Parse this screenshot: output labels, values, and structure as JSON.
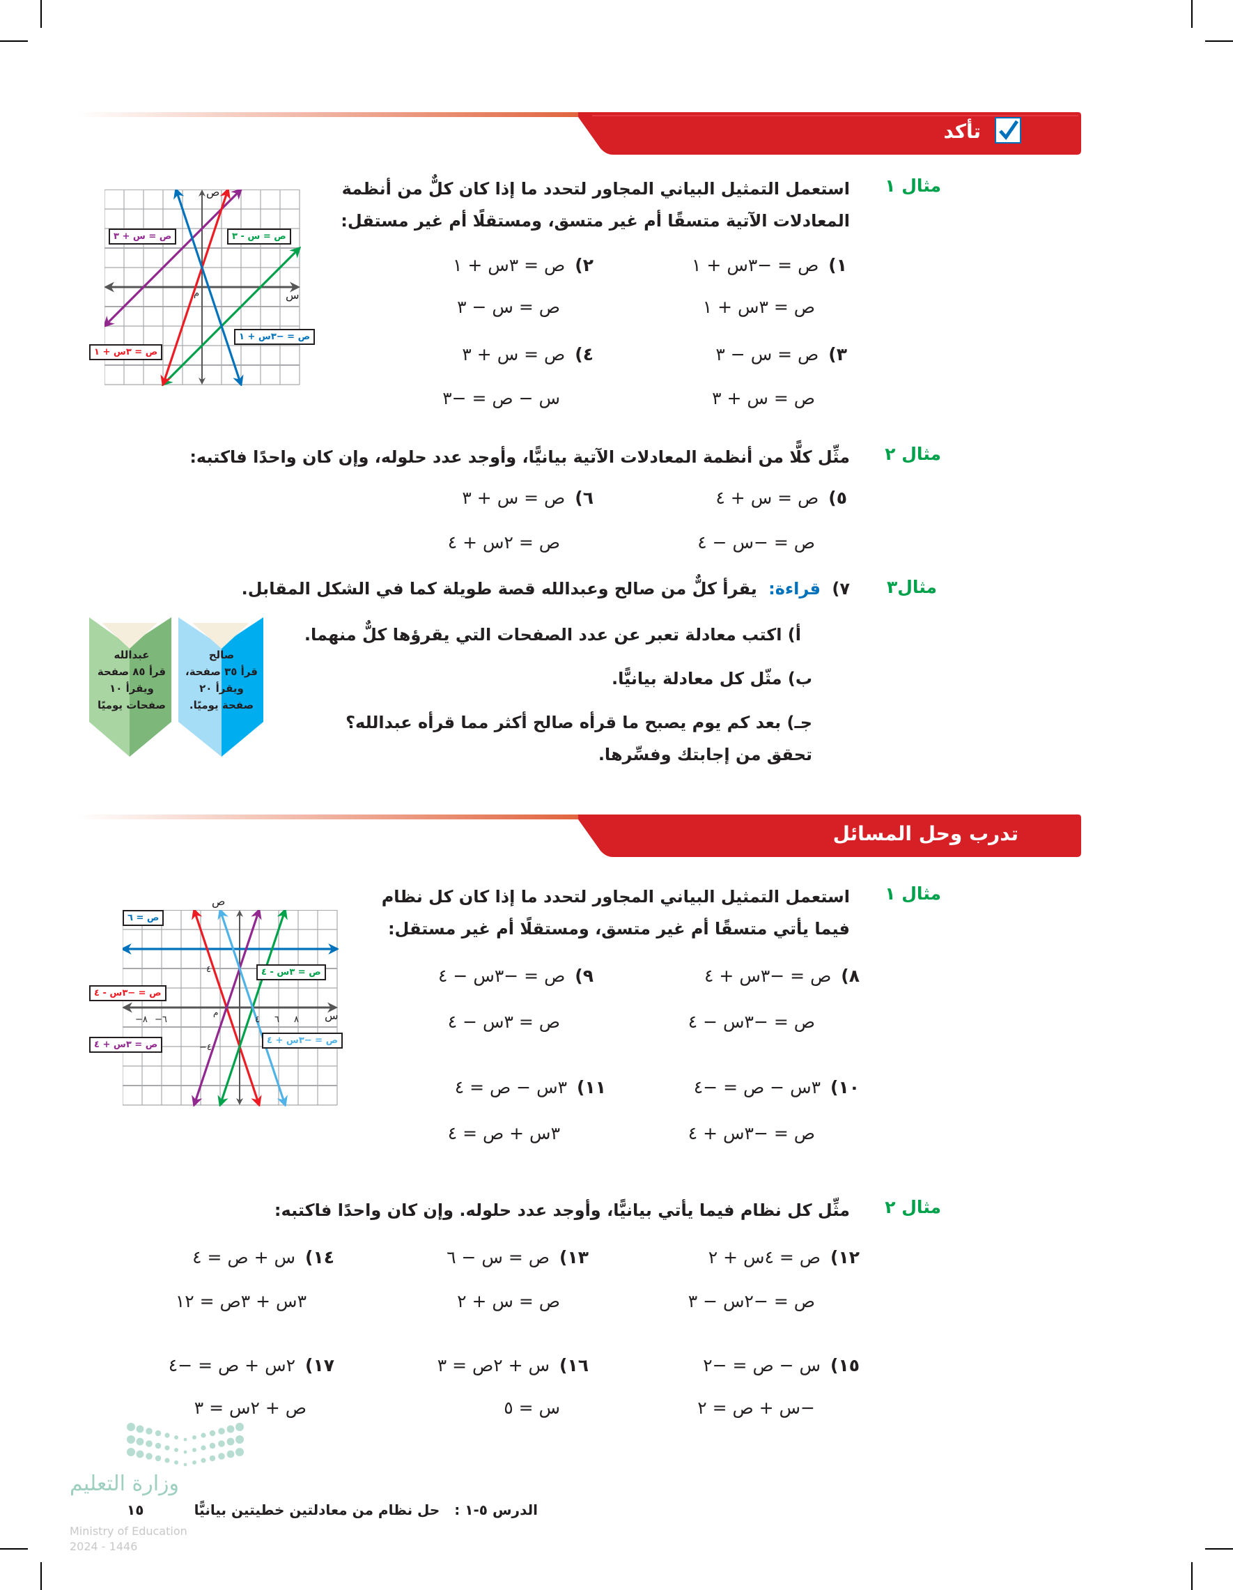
{
  "section_check": {
    "title": "تأكد",
    "icon": "checkbox-check-icon"
  },
  "section_practice": {
    "title": "تدرب وحل المسائل"
  },
  "colors": {
    "header_red": "#d71f26",
    "example_green": "#00a14b",
    "reading_blue": "#0072bc",
    "book_blue": "#00aeef",
    "book_green": "#7db87a"
  },
  "check": {
    "ex1": {
      "label": "مثال ١",
      "prompt": "استعمل التمثيل البياني المجاور لتحدد ما إذا كان كلٌّ من أنظمة المعادلات الآتية متسقًا أم غير متسق، ومستقلًا أم غير مستقل:",
      "problems": [
        {
          "num": "١)",
          "eq1": "ص = −٣س + ١",
          "eq2": "ص = ٣س + ١"
        },
        {
          "num": "٢)",
          "eq1": "ص = ٣س + ١",
          "eq2": "ص = س − ٣"
        },
        {
          "num": "٣)",
          "eq1": "ص = س − ٣",
          "eq2": "ص = س + ٣"
        },
        {
          "num": "٤)",
          "eq1": "ص = س + ٣",
          "eq2": "س − ص = −٣"
        }
      ],
      "graph": {
        "x_axis": "س",
        "y_axis": "ص",
        "origin": "م",
        "labels": {
          "purple": "ص = س + ٣",
          "green": "ص = س - ٣",
          "red": "ص = ٣س + ١",
          "blue": "ص = −٣س + ١"
        }
      }
    },
    "ex2": {
      "label": "مثال ٢",
      "prompt": "مثِّل كلًّا من أنظمة المعادلات الآتية بيانيًّا، وأوجد عدد حلوله، وإن كان واحدًا فاكتبه:",
      "problems": [
        {
          "num": "٥)",
          "eq1": "ص = س + ٤",
          "eq2": "ص = −س − ٤"
        },
        {
          "num": "٦)",
          "eq1": "ص = س + ٣",
          "eq2": "ص = ٢س + ٤"
        }
      ]
    },
    "ex3": {
      "label": "مثال٣",
      "num": "٧)",
      "topic": "قراءة:",
      "prompt": "يقرأ كلٌّ من صالح وعبدالله قصة طويلة كما في الشكل المقابل.",
      "parts": [
        {
          "letter": "أ)",
          "text": "اكتب معادلة تعبر عن عدد الصفحات التي يقرؤها كلٌّ منهما."
        },
        {
          "letter": "ب)",
          "text": "مثّل كل معادلة بيانيًّا."
        },
        {
          "letter": "جـ)",
          "text": "بعد كم يوم يصبح ما قرأه صالح أكثر مما قرأه عبدالله؟ تحقق من إجابتك وفسِّرها."
        }
      ],
      "books": [
        {
          "name": "صالح",
          "l1": "قرأ ٣٥ صفحة،",
          "l2": "ويقرأ ٢٠",
          "l3": "صفحة يوميًا."
        },
        {
          "name": "عبدالله",
          "l1": "قرأ ٨٥ صفحة",
          "l2": "ويقرأ ١٠",
          "l3": "صفحات يوميًا"
        }
      ]
    }
  },
  "practice": {
    "ex1": {
      "label": "مثال ١",
      "prompt": "استعمل التمثيل البياني المجاور لتحدد ما إذا كان كل نظام فيما يأتي متسقًا أم غير متسق، ومستقلًا أم غير مستقل:",
      "problems": [
        {
          "num": "٨)",
          "eq1": "ص = −٣س + ٤",
          "eq2": "ص = −٣س − ٤"
        },
        {
          "num": "٩)",
          "eq1": "ص = −٣س − ٤",
          "eq2": "ص = ٣س − ٤"
        },
        {
          "num": "١٠)",
          "eq1": "٣س − ص = −٤",
          "eq2": "ص = −٣س + ٤"
        },
        {
          "num": "١١)",
          "eq1": "٣س − ص = ٤",
          "eq2": "٣س + ص = ٤"
        }
      ],
      "graph": {
        "x_axis": "س",
        "y_axis": "ص",
        "origin": "م",
        "ticks_x": [
          "−٨",
          "−٦",
          "٤",
          "٦",
          "٨"
        ],
        "tick_y_pos": "٤",
        "tick_y_neg": "−٤",
        "labels": {
          "dblue": "ص = ٦",
          "green": "ص = ٣س - ٤",
          "red": "ص = −٣س - ٤",
          "purple": "ص = ٣س + ٤",
          "lblue": "ص = −٣س + ٤"
        }
      }
    },
    "ex2": {
      "label": "مثال ٢",
      "prompt": "مثِّل كل نظام فيما يأتي بيانيًّا، وأوجد عدد حلوله. وإن كان واحدًا فاكتبه:",
      "problems": [
        {
          "num": "١٢)",
          "eq1": "ص = ٤س + ٢",
          "eq2": "ص = −٢س − ٣"
        },
        {
          "num": "١٣)",
          "eq1": "ص = س − ٦",
          "eq2": "ص = س + ٢"
        },
        {
          "num": "١٤)",
          "eq1": "س + ص = ٤",
          "eq2": "٣س + ٣ص = ١٢"
        },
        {
          "num": "١٥)",
          "eq1": "س − ص = −٢",
          "eq2": "−س + ص = ٢"
        },
        {
          "num": "١٦)",
          "eq1": "س + ٢ص = ٣",
          "eq2": "س = ٥"
        },
        {
          "num": "١٧)",
          "eq1": "٢س + ص = −٤",
          "eq2": "ص + ٢س = ٣"
        }
      ]
    }
  },
  "footer": {
    "lesson": "الدرس ٥-١ :",
    "title": "حل نظام من معادلتين خطيتين بيانيًّا",
    "page": "١٥",
    "ministry_ar": "وزارة التعليم",
    "ministry_en": "Ministry of Education",
    "year": "2024 - 1446"
  }
}
